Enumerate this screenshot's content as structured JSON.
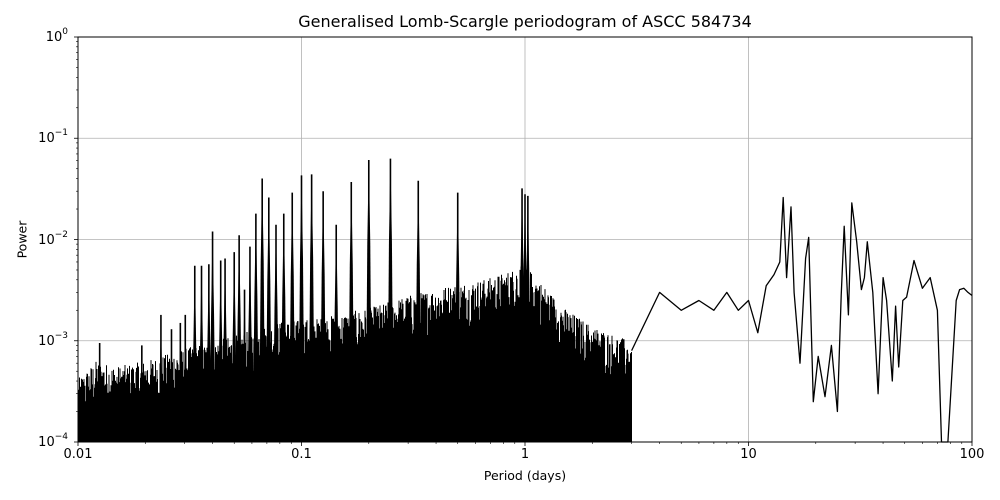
{
  "chart_data": {
    "type": "line",
    "title": "Generalised Lomb-Scargle periodogram of ASCC 584734",
    "xlabel": "Period (days)",
    "ylabel": "Power",
    "xscale": "log",
    "yscale": "log",
    "xlim": [
      0.01,
      100
    ],
    "ylim": [
      0.0001,
      1
    ],
    "grid": true,
    "x_ticks": [
      "0.01",
      "0.1",
      "1",
      "10",
      "100"
    ],
    "y_ticks": [
      {
        "base": "10",
        "exp": "0",
        "value": 1
      },
      {
        "base": "10",
        "exp": "−1",
        "value": 0.1
      },
      {
        "base": "10",
        "exp": "−2",
        "value": 0.01
      },
      {
        "base": "10",
        "exp": "−3",
        "value": 0.001
      },
      {
        "base": "10",
        "exp": "−4",
        "value": 0.0001
      }
    ],
    "line_color": "#000000",
    "grid_color": "#b0b0b0",
    "noise_floor": {
      "x": [
        0.01,
        0.012,
        0.015,
        0.02,
        0.03,
        0.05,
        0.08,
        0.12,
        0.2,
        0.3,
        0.45,
        0.7,
        1.0,
        1.5,
        2.0,
        3.0
      ],
      "y": [
        0.0003,
        0.00045,
        0.0004,
        0.00045,
        0.0006,
        0.0008,
        0.0011,
        0.0012,
        0.0015,
        0.002,
        0.0025,
        0.003,
        0.004,
        0.0015,
        0.001,
        0.0007
      ]
    },
    "peaks": [
      {
        "x": 0.0125,
        "y": 0.00095
      },
      {
        "x": 0.0193,
        "y": 0.0009
      },
      {
        "x": 0.0235,
        "y": 0.0018
      },
      {
        "x": 0.0262,
        "y": 0.0013
      },
      {
        "x": 0.0287,
        "y": 0.0015
      },
      {
        "x": 0.0302,
        "y": 0.0018
      },
      {
        "x": 0.0333,
        "y": 0.0055
      },
      {
        "x": 0.0357,
        "y": 0.0055
      },
      {
        "x": 0.0385,
        "y": 0.0057
      },
      {
        "x": 0.04,
        "y": 0.012
      },
      {
        "x": 0.0435,
        "y": 0.0062
      },
      {
        "x": 0.0455,
        "y": 0.0065
      },
      {
        "x": 0.05,
        "y": 0.0075
      },
      {
        "x": 0.0526,
        "y": 0.011
      },
      {
        "x": 0.0556,
        "y": 0.0032
      },
      {
        "x": 0.0588,
        "y": 0.0085
      },
      {
        "x": 0.0625,
        "y": 0.018
      },
      {
        "x": 0.0667,
        "y": 0.04
      },
      {
        "x": 0.0714,
        "y": 0.026
      },
      {
        "x": 0.0769,
        "y": 0.014
      },
      {
        "x": 0.0833,
        "y": 0.018
      },
      {
        "x": 0.0909,
        "y": 0.029
      },
      {
        "x": 0.1,
        "y": 0.043
      },
      {
        "x": 0.111,
        "y": 0.044
      },
      {
        "x": 0.125,
        "y": 0.03
      },
      {
        "x": 0.143,
        "y": 0.014
      },
      {
        "x": 0.167,
        "y": 0.037
      },
      {
        "x": 0.2,
        "y": 0.061
      },
      {
        "x": 0.25,
        "y": 0.063
      },
      {
        "x": 0.333,
        "y": 0.038
      },
      {
        "x": 0.5,
        "y": 0.029
      },
      {
        "x": 0.97,
        "y": 0.032
      },
      {
        "x": 1.0,
        "y": 0.028
      },
      {
        "x": 1.03,
        "y": 0.027
      }
    ],
    "long_period_curve": {
      "x": [
        3,
        4,
        5,
        6,
        7,
        8,
        9,
        10,
        11,
        12,
        13,
        13.8,
        14.3,
        14.8,
        15.5,
        16,
        17,
        18,
        18.6,
        19.5,
        20.5,
        22,
        23.5,
        25,
        26,
        26.8,
        28,
        29,
        30.5,
        32,
        33,
        34,
        36,
        38,
        40,
        41.5,
        44,
        45.5,
        47,
        49,
        51,
        55,
        57,
        60,
        65,
        70,
        73,
        78,
        85,
        88,
        92,
        96,
        100
      ],
      "y": [
        0.0008,
        0.003,
        0.002,
        0.0025,
        0.002,
        0.003,
        0.002,
        0.0025,
        0.0012,
        0.0035,
        0.0045,
        0.006,
        0.026,
        0.0042,
        0.021,
        0.003,
        0.0006,
        0.0065,
        0.0105,
        0.00025,
        0.0007,
        0.00028,
        0.0009,
        0.0002,
        0.0028,
        0.0135,
        0.0018,
        0.023,
        0.0095,
        0.0032,
        0.0042,
        0.0095,
        0.003,
        0.0003,
        0.0042,
        0.0025,
        0.0004,
        0.0022,
        0.00055,
        0.0025,
        0.0027,
        0.0062,
        0.0048,
        0.0033,
        0.0042,
        0.002,
        0.0001,
        0.0001,
        0.0025,
        0.0032,
        0.0033,
        0.003,
        0.0028
      ]
    }
  }
}
